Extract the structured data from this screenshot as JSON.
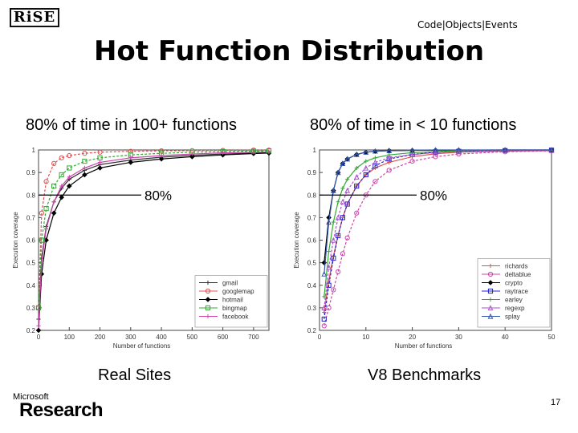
{
  "header": {
    "logo_text": "RiSE",
    "tagline": "Code|Objects|Events",
    "title": "Hot Function Distribution"
  },
  "footer": {
    "brand_small": "Microsoft",
    "brand_big": "Research",
    "page_number": "17"
  },
  "charts": {
    "left": {
      "subtitle": "80% of time in 100+ functions",
      "caption": "Real Sites",
      "annotation": "80%"
    },
    "right": {
      "subtitle": "80% of time in < 10 functions",
      "caption": "V8 Benchmarks",
      "annotation": "80%"
    }
  },
  "chart_data": [
    {
      "type": "line",
      "xlabel": "Number of functions",
      "ylabel": "Execution coverage",
      "xlim": [
        0,
        750
      ],
      "ylim": [
        0.2,
        1.0
      ],
      "x_ticks": [
        "0",
        "100",
        "200",
        "300",
        "400",
        "500",
        "600",
        "700"
      ],
      "y_ticks": [
        "0.2",
        "0.3",
        "0.4",
        "0.5",
        "0.6",
        "0.7",
        "0.8",
        "0.9",
        "1"
      ],
      "reference_line": {
        "y": 0.8,
        "label": "80%"
      },
      "legend_position": "lower-right",
      "grid": false,
      "x": [
        0,
        10,
        25,
        50,
        75,
        100,
        150,
        200,
        300,
        400,
        500,
        600,
        700,
        750
      ],
      "series": [
        {
          "name": "gmail",
          "color": "#333333",
          "values": [
            0.25,
            0.52,
            0.66,
            0.77,
            0.83,
            0.87,
            0.91,
            0.935,
            0.955,
            0.968,
            0.976,
            0.982,
            0.986,
            0.988
          ]
        },
        {
          "name": "googlemap",
          "color": "#e05050",
          "values": [
            0.3,
            0.72,
            0.86,
            0.94,
            0.965,
            0.975,
            0.985,
            0.99,
            0.994,
            0.996,
            0.997,
            0.998,
            0.999,
            0.999
          ]
        },
        {
          "name": "hotmail",
          "color": "#000000",
          "values": [
            0.2,
            0.45,
            0.6,
            0.72,
            0.79,
            0.84,
            0.89,
            0.92,
            0.945,
            0.96,
            0.97,
            0.978,
            0.984,
            0.986
          ]
        },
        {
          "name": "bingmap",
          "color": "#33aa33",
          "values": [
            0.3,
            0.6,
            0.74,
            0.84,
            0.89,
            0.92,
            0.95,
            0.965,
            0.978,
            0.985,
            0.99,
            0.993,
            0.995,
            0.996
          ]
        },
        {
          "name": "facebook",
          "color": "#cc44aa",
          "values": [
            0.22,
            0.5,
            0.65,
            0.77,
            0.84,
            0.88,
            0.92,
            0.945,
            0.965,
            0.975,
            0.982,
            0.987,
            0.99,
            0.991
          ]
        }
      ]
    },
    {
      "type": "line",
      "xlabel": "Number of functions",
      "ylabel": "Execution coverage",
      "xlim": [
        0,
        50
      ],
      "ylim": [
        0.2,
        1.0
      ],
      "x_ticks": [
        "0",
        "10",
        "20",
        "30",
        "40",
        "50"
      ],
      "y_ticks": [
        "0.2",
        "0.3",
        "0.4",
        "0.5",
        "0.6",
        "0.7",
        "0.8",
        "0.9",
        "1"
      ],
      "reference_line": {
        "y": 0.8,
        "label": "80%"
      },
      "legend_position": "lower-right",
      "grid": false,
      "x": [
        1,
        2,
        3,
        4,
        5,
        6,
        8,
        10,
        12,
        15,
        20,
        25,
        30,
        40,
        50
      ],
      "series": [
        {
          "name": "richards",
          "color": "#e05050",
          "values": [
            0.28,
            0.42,
            0.53,
            0.62,
            0.7,
            0.76,
            0.84,
            0.89,
            0.92,
            0.945,
            0.97,
            0.983,
            0.99,
            0.995,
            0.997
          ]
        },
        {
          "name": "deltablue",
          "color": "#cc44aa",
          "values": [
            0.22,
            0.3,
            0.38,
            0.46,
            0.54,
            0.61,
            0.72,
            0.8,
            0.86,
            0.91,
            0.95,
            0.97,
            0.982,
            0.992,
            0.996
          ]
        },
        {
          "name": "crypto",
          "color": "#000000",
          "values": [
            0.5,
            0.7,
            0.82,
            0.9,
            0.94,
            0.96,
            0.98,
            0.99,
            0.994,
            0.997,
            0.998,
            0.999,
            0.999,
            1.0,
            1.0
          ]
        },
        {
          "name": "raytrace",
          "color": "#2222cc",
          "values": [
            0.25,
            0.4,
            0.52,
            0.62,
            0.7,
            0.76,
            0.84,
            0.89,
            0.93,
            0.96,
            0.98,
            0.99,
            0.994,
            0.997,
            0.999
          ]
        },
        {
          "name": "earley",
          "color": "#33aa33",
          "values": [
            0.35,
            0.55,
            0.68,
            0.77,
            0.83,
            0.87,
            0.92,
            0.95,
            0.965,
            0.978,
            0.988,
            0.993,
            0.996,
            0.998,
            0.999
          ]
        },
        {
          "name": "regexp",
          "color": "#aa55cc",
          "values": [
            0.3,
            0.48,
            0.6,
            0.7,
            0.77,
            0.82,
            0.88,
            0.92,
            0.945,
            0.965,
            0.98,
            0.988,
            0.993,
            0.997,
            0.998
          ]
        },
        {
          "name": "splay",
          "color": "#3355aa",
          "values": [
            0.45,
            0.68,
            0.82,
            0.9,
            0.94,
            0.96,
            0.98,
            0.99,
            0.995,
            0.997,
            0.999,
            1.0,
            1.0,
            1.0,
            1.0
          ]
        }
      ]
    }
  ]
}
